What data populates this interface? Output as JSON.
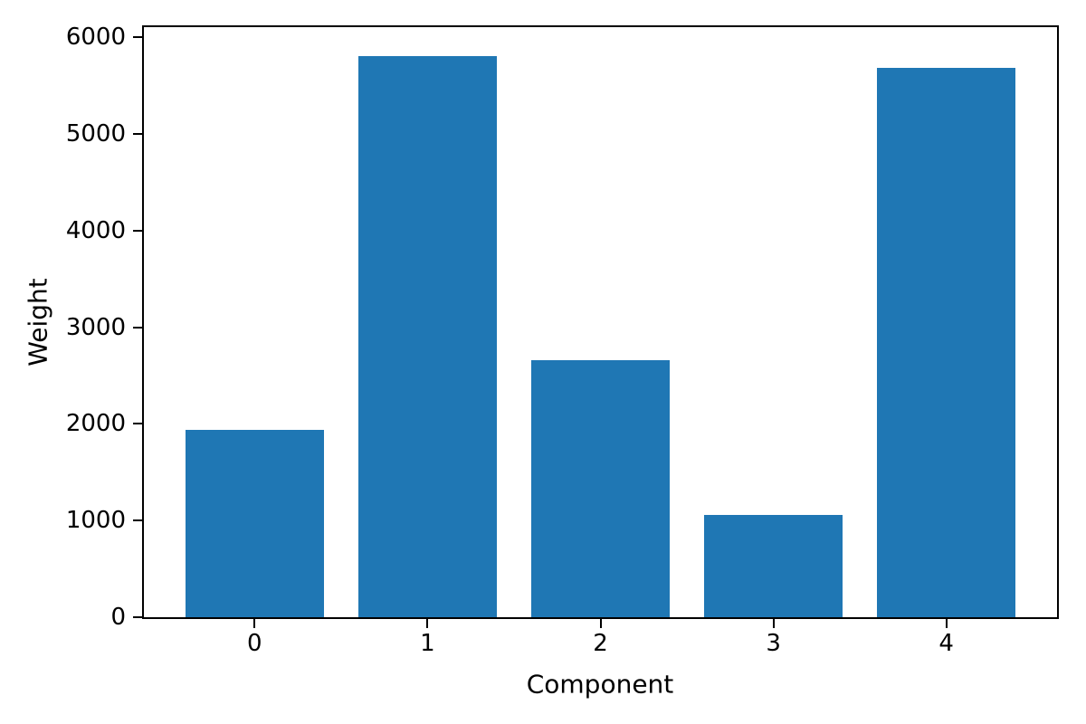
{
  "chart_data": {
    "type": "bar",
    "title": "",
    "xlabel": "Component",
    "ylabel": "Weight",
    "categories": [
      "0",
      "1",
      "2",
      "3",
      "4"
    ],
    "values": [
      1940,
      5810,
      2660,
      1060,
      5680
    ],
    "yticks": [
      0,
      1000,
      2000,
      3000,
      4000,
      5000,
      6000
    ],
    "ylim": [
      0,
      6105
    ],
    "xlim": [
      -0.64,
      4.64
    ],
    "bar_width": 0.8,
    "bar_color": "#1f77b4",
    "axis_color": "#000000",
    "background_color": "#ffffff",
    "grid": false,
    "legend_position": "none"
  }
}
